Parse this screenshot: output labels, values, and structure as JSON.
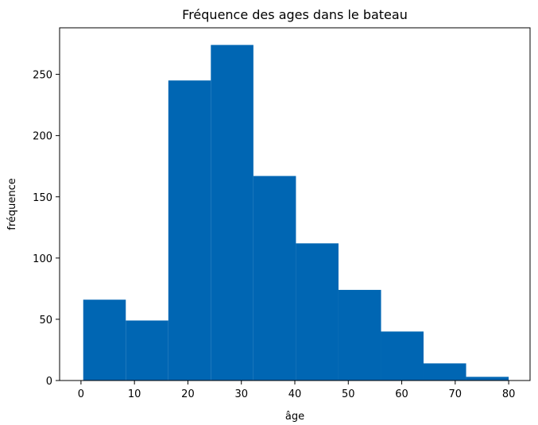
{
  "chart_data": {
    "type": "bar",
    "title": "Fréquence des ages dans le bateau",
    "xlabel": "âge",
    "ylabel": "fréquence",
    "bar_color": "#0066b3",
    "bin_edges": [
      0.42,
      8.38,
      16.34,
      24.29,
      32.25,
      40.21,
      48.17,
      56.13,
      64.08,
      72.04,
      80.0
    ],
    "values": [
      66,
      49,
      245,
      274,
      167,
      112,
      74,
      40,
      14,
      3
    ],
    "xlim": [
      -4,
      84
    ],
    "ylim": [
      0,
      288
    ],
    "xticks": [
      0,
      10,
      20,
      30,
      40,
      50,
      60,
      70,
      80
    ],
    "yticks": [
      0,
      50,
      100,
      150,
      200,
      250
    ],
    "grid": false,
    "legend": false
  }
}
